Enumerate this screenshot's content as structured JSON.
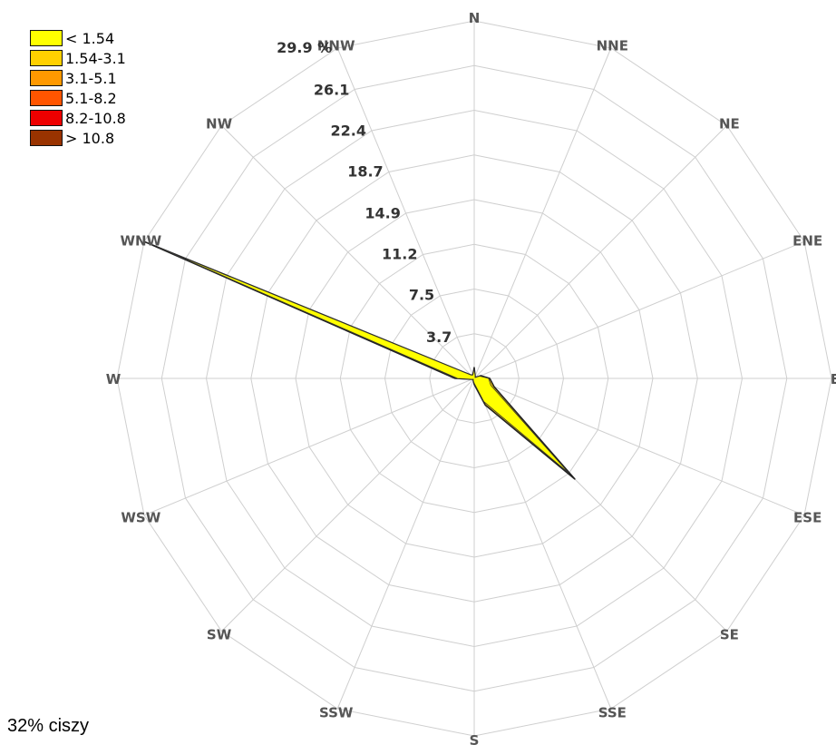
{
  "chart_data": {
    "type": "wind-rose",
    "directions": [
      "N",
      "NNE",
      "NE",
      "ENE",
      "E",
      "ESE",
      "SE",
      "SSE",
      "S",
      "SSW",
      "SW",
      "WSW",
      "W",
      "WNW",
      "NW",
      "NNW"
    ],
    "radial_ticks": [
      "3.7",
      "7.5",
      "11.2",
      "14.9",
      "18.7",
      "22.4",
      "26.1",
      "29.9 %"
    ],
    "radial_tick_values": [
      3.7,
      7.5,
      11.2,
      14.9,
      18.7,
      22.4,
      26.1,
      29.9
    ],
    "radial_max": 29.9,
    "ring_count": 8,
    "speed_classes": [
      {
        "label": "< 1.54",
        "color": "#ffff00"
      },
      {
        "label": "1.54-3.1",
        "color": "#ffd000"
      },
      {
        "label": "3.1-5.1",
        "color": "#ff9900"
      },
      {
        "label": "5.1-8.2",
        "color": "#ff5500"
      },
      {
        "label": "8.2-10.8",
        "color": "#ee0000"
      },
      {
        "label": "> 10.8",
        "color": "#993300"
      }
    ],
    "frequencies_percent": {
      "N": 0.9,
      "NNE": 0.2,
      "NE": 0.1,
      "ENE": 0.6,
      "E": 1.3,
      "ESE": 1.8,
      "SE": 11.9,
      "SSE": 2.4,
      "S": 0.5,
      "SSW": 0.2,
      "SW": 0.1,
      "WSW": 0.2,
      "W": 1.6,
      "WNW": 29.9,
      "NW": 0.4,
      "NNW": 0.3
    },
    "inner_percent": {
      "N": 0.8,
      "NNE": 0.2,
      "NE": 0.1,
      "ENE": 0.5,
      "E": 1.2,
      "ESE": 1.5,
      "SE": 11.2,
      "SSE": 2.1,
      "S": 0.4,
      "SSW": 0.2,
      "SW": 0.1,
      "WSW": 0.2,
      "W": 1.4,
      "WNW": 28.6,
      "NW": 0.4,
      "NNW": 0.3
    },
    "calm_label": "32% ciszy"
  }
}
